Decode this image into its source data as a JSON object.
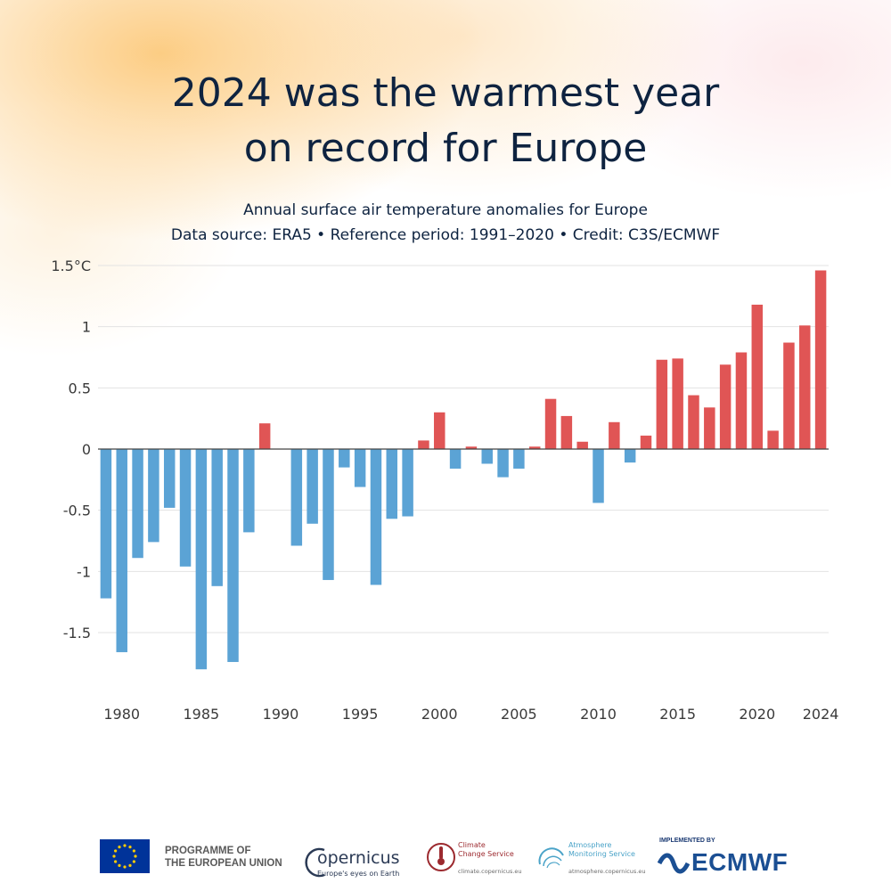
{
  "title": {
    "line1": "2024 was the warmest year",
    "line2": "on record for Europe"
  },
  "subtitle": {
    "line1": "Annual surface air temperature anomalies for Europe",
    "line2": "Data source: ERA5 • Reference period: 1991–2020 • Credit: C3S/ECMWF"
  },
  "chart_data": {
    "type": "bar",
    "title": "Annual surface air temperature anomalies for Europe",
    "xlabel": "",
    "ylabel": "",
    "unit": "°C",
    "ylim": [
      -1.85,
      1.5
    ],
    "grid": true,
    "y_ticks": [
      {
        "value": 1.5,
        "label": "1.5°C"
      },
      {
        "value": 1,
        "label": "1"
      },
      {
        "value": 0.5,
        "label": "0.5"
      },
      {
        "value": 0,
        "label": "0"
      },
      {
        "value": -0.5,
        "label": "-0.5"
      },
      {
        "value": -1,
        "label": "-1"
      },
      {
        "value": -1.5,
        "label": "-1.5"
      }
    ],
    "x_ticks": [
      {
        "value": 1980,
        "label": "1980"
      },
      {
        "value": 1985,
        "label": "1985"
      },
      {
        "value": 1990,
        "label": "1990"
      },
      {
        "value": 1995,
        "label": "1995"
      },
      {
        "value": 2000,
        "label": "2000"
      },
      {
        "value": 2005,
        "label": "2005"
      },
      {
        "value": 2010,
        "label": "2010"
      },
      {
        "value": 2015,
        "label": "2015"
      },
      {
        "value": 2020,
        "label": "2020"
      },
      {
        "value": 2024,
        "label": "2024"
      }
    ],
    "colors": {
      "positive": "#e05555",
      "negative": "#5ba3d5",
      "grid": "#e3e3e3",
      "axis": "#444444"
    },
    "categories": [
      1979,
      1980,
      1981,
      1982,
      1983,
      1984,
      1985,
      1986,
      1987,
      1988,
      1989,
      1990,
      1991,
      1992,
      1993,
      1994,
      1995,
      1996,
      1997,
      1998,
      1999,
      2000,
      2001,
      2002,
      2003,
      2004,
      2005,
      2006,
      2007,
      2008,
      2009,
      2010,
      2011,
      2012,
      2013,
      2014,
      2015,
      2016,
      2017,
      2018,
      2019,
      2020,
      2021,
      2022,
      2023,
      2024
    ],
    "values": [
      -1.22,
      -1.66,
      -0.89,
      -0.76,
      -0.48,
      -0.96,
      -1.8,
      -1.12,
      -1.74,
      -0.68,
      0.21,
      0.0,
      -0.79,
      -0.61,
      -1.07,
      -0.15,
      -0.31,
      -1.11,
      -0.57,
      -0.55,
      0.07,
      0.3,
      -0.16,
      0.02,
      -0.12,
      -0.23,
      -0.16,
      0.02,
      0.41,
      0.27,
      0.06,
      -0.44,
      0.22,
      -0.11,
      0.11,
      0.73,
      0.74,
      0.44,
      0.34,
      0.69,
      0.79,
      1.18,
      0.15,
      0.87,
      1.01,
      1.46
    ]
  },
  "footer": {
    "programme_line1": "PROGRAMME OF",
    "programme_line2": "THE EUROPEAN UNION",
    "copernicus_name": "opernicus",
    "copernicus_tagline": "Europe's eyes on Earth",
    "c3s_line1": "Climate",
    "c3s_line2": "Change Service",
    "c3s_url": "climate.copernicus.eu",
    "cams_line1": "Atmosphere",
    "cams_line2": "Monitoring Service",
    "cams_url": "atmosphere.copernicus.eu",
    "ecmwf_implemented": "IMPLEMENTED BY",
    "ecmwf_name": "ECMWF"
  }
}
